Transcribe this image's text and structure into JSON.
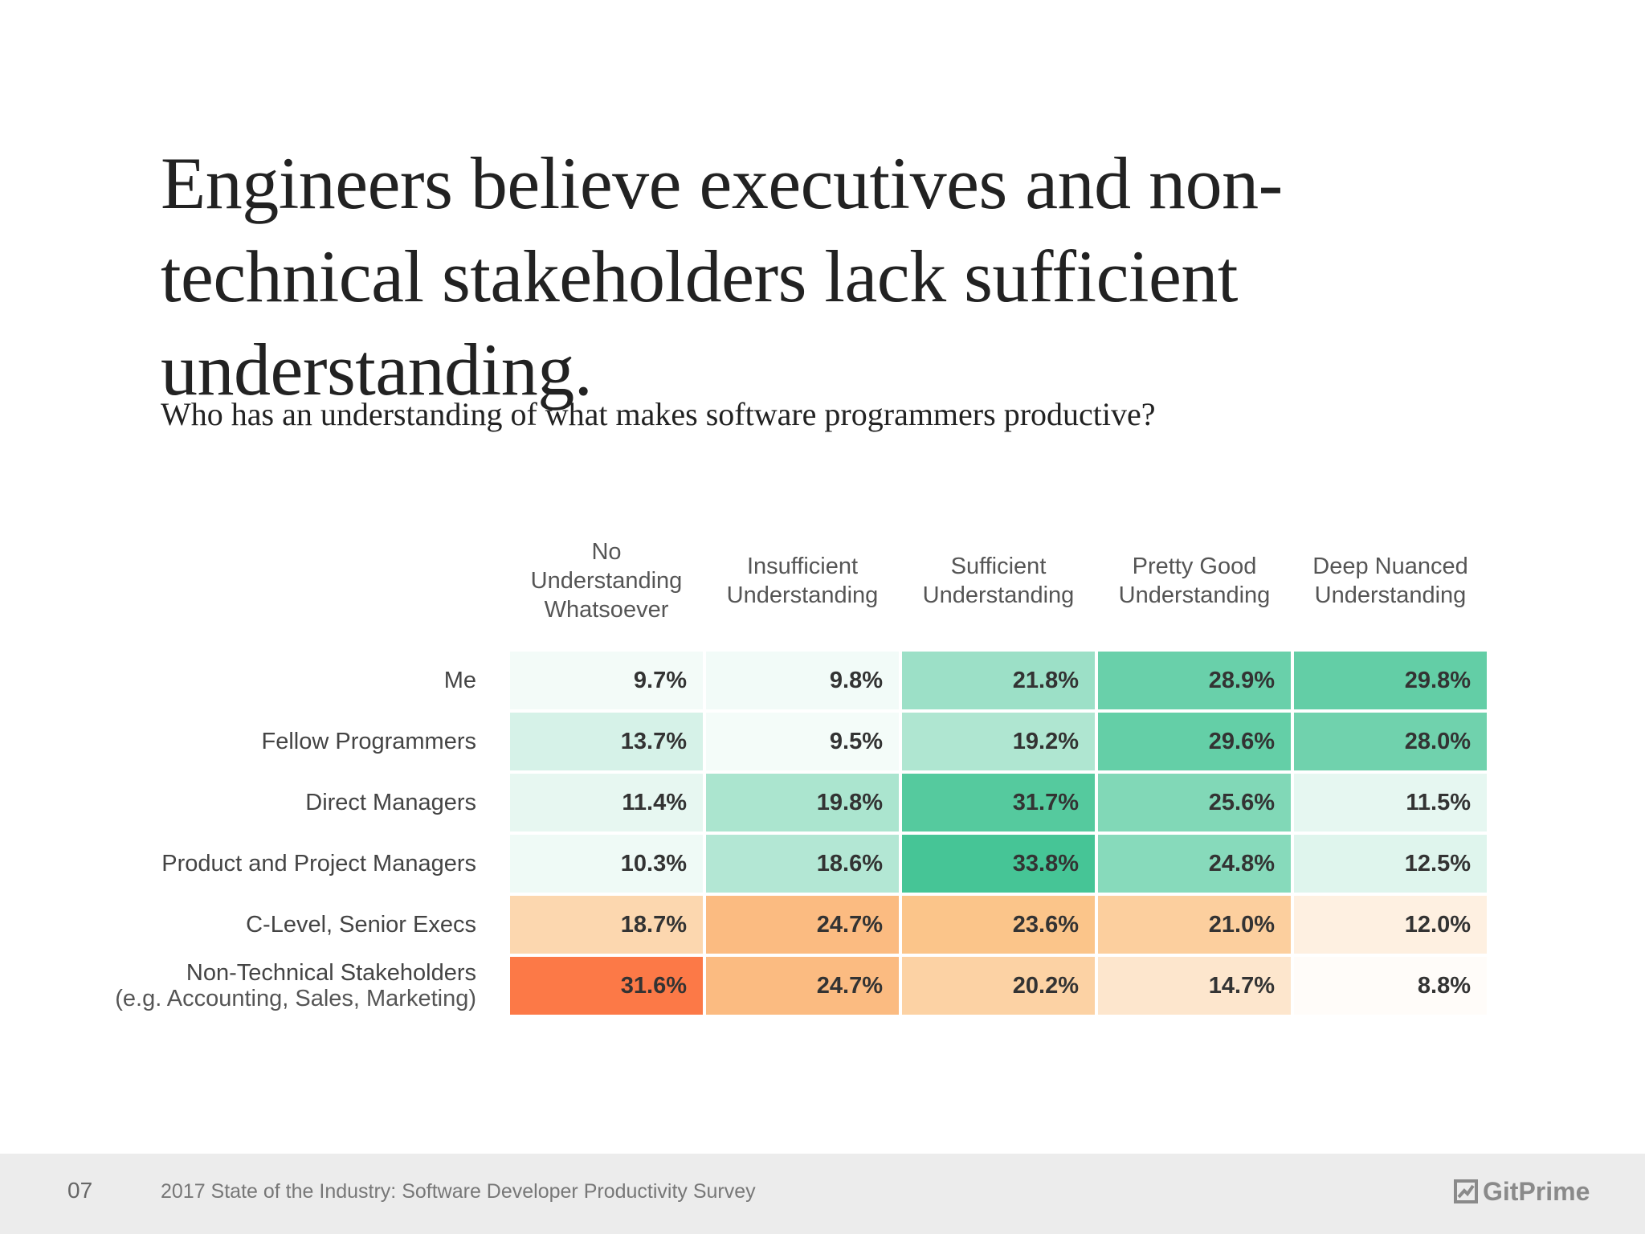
{
  "title": "Engineers believe executives and non-technical stakeholders lack sufficient understanding.",
  "subtitle": "Who has an understanding of what makes software programmers productive?",
  "chart_data": {
    "type": "heatmap",
    "title": "Who has an understanding of what makes software programmers productive?",
    "columns": [
      "No\nUnderstanding\nWhatsoever",
      "Insufficient\nUnderstanding",
      "Sufficient\nUnderstanding",
      "Pretty Good\nUnderstanding",
      "Deep Nuanced\nUnderstanding"
    ],
    "rows": [
      {
        "label": "Me",
        "sublabel": "",
        "values": [
          9.7,
          9.8,
          21.8,
          28.9,
          29.8
        ],
        "value_labels": [
          "9.7%",
          "9.8%",
          "21.8%",
          "28.9%",
          "29.8%"
        ],
        "polarity": "positive"
      },
      {
        "label": "Fellow Programmers",
        "sublabel": "",
        "values": [
          13.7,
          9.5,
          19.2,
          29.6,
          28.0
        ],
        "value_labels": [
          "13.7%",
          "9.5%",
          "19.2%",
          "29.6%",
          "28.0%"
        ],
        "polarity": "positive"
      },
      {
        "label": "Direct Managers",
        "sublabel": "",
        "values": [
          11.4,
          19.8,
          31.7,
          25.6,
          11.5
        ],
        "value_labels": [
          "11.4%",
          "19.8%",
          "31.7%",
          "25.6%",
          "11.5%"
        ],
        "polarity": "positive"
      },
      {
        "label": "Product and Project Managers",
        "sublabel": "",
        "values": [
          10.3,
          18.6,
          33.8,
          24.8,
          12.5
        ],
        "value_labels": [
          "10.3%",
          "18.6%",
          "33.8%",
          "24.8%",
          "12.5%"
        ],
        "polarity": "positive"
      },
      {
        "label": "C-Level, Senior Execs",
        "sublabel": "",
        "values": [
          18.7,
          24.7,
          23.6,
          21.0,
          12.0
        ],
        "value_labels": [
          "18.7%",
          "24.7%",
          "23.6%",
          "21.0%",
          "12.0%"
        ],
        "polarity": "negative"
      },
      {
        "label": "Non-Technical Stakeholders",
        "sublabel": "(e.g. Accounting, Sales, Marketing)",
        "values": [
          31.6,
          24.7,
          20.2,
          14.7,
          8.8
        ],
        "value_labels": [
          "31.6%",
          "24.7%",
          "20.2%",
          "14.7%",
          "8.8%"
        ],
        "polarity": "negative"
      }
    ],
    "colors": {
      "positive_high": "#45c595",
      "negative_high": "#fc6233",
      "negative_mid": "#fbc58a",
      "low": "#ffffff"
    },
    "value_range": [
      8,
      34
    ]
  },
  "footer": {
    "page_number": "07",
    "text": "2017 State of the Industry: Software Developer Productivity Survey",
    "logo_text": "GitPrime",
    "logo_icon": "gitprime-logo-icon"
  }
}
